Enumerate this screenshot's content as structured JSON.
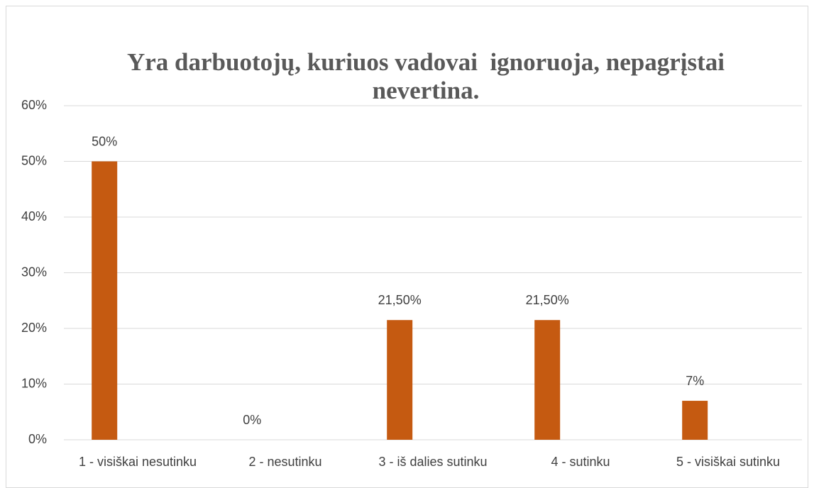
{
  "chart_data": {
    "type": "bar",
    "title": "Yra darbuotojų, kuriuos vadovai  ignoruoja, nepagrįstai nevertina.",
    "categories": [
      "1 - visiškai nesutinku",
      "2 - nesutinku",
      "3 - iš dalies sutinku",
      "4 - sutinku",
      "5 - visiškai sutinku"
    ],
    "values": [
      50,
      0,
      21.5,
      21.5,
      7
    ],
    "value_labels": [
      "50%",
      "0%",
      "21,50%",
      "21,50%",
      "7%"
    ],
    "color": "#c55a11",
    "ylim": [
      0,
      60
    ],
    "yticks": [
      {
        "value": 0,
        "label": "0%"
      },
      {
        "value": 10,
        "label": "10%"
      },
      {
        "value": 20,
        "label": "20%"
      },
      {
        "value": 30,
        "label": "30%"
      },
      {
        "value": 40,
        "label": "40%"
      },
      {
        "value": 50,
        "label": "50%"
      },
      {
        "value": 60,
        "label": "60%"
      }
    ],
    "grid": true
  }
}
